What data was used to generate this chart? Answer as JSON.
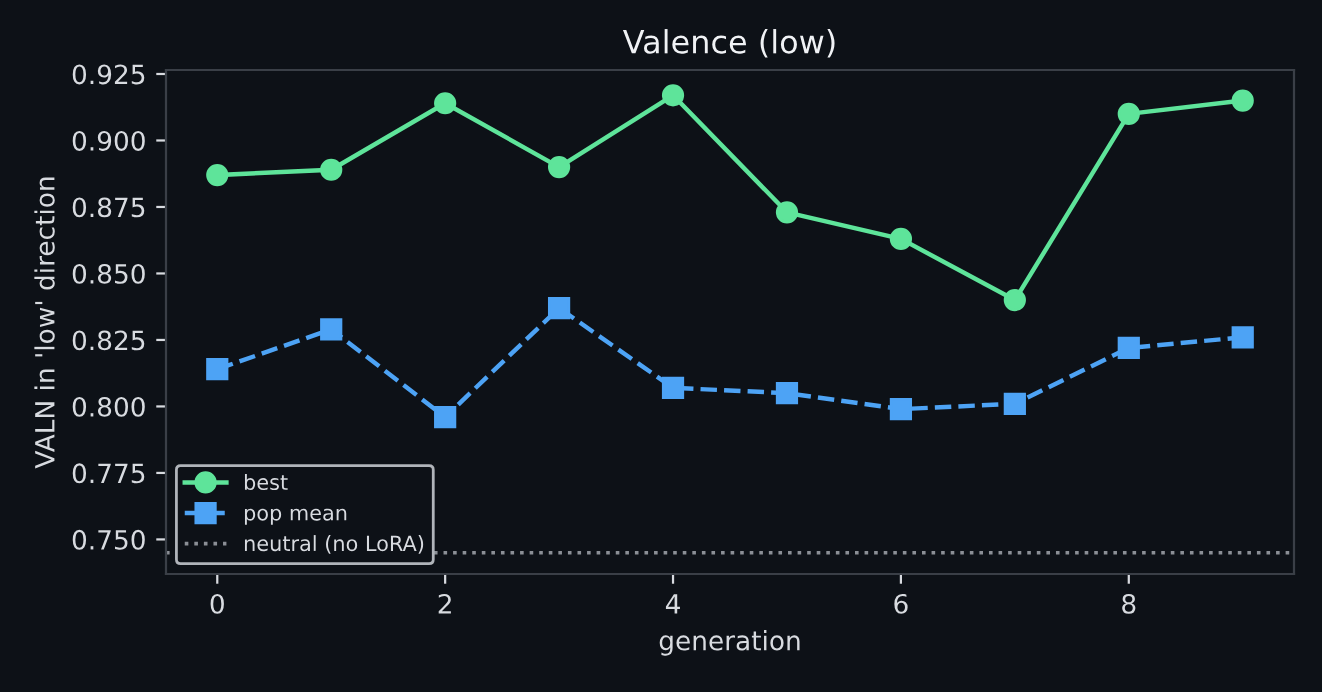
{
  "chart_data": {
    "type": "line",
    "title": "Valence (low)",
    "xlabel": "generation",
    "ylabel": "VALN in 'low' direction",
    "x": [
      0,
      1,
      2,
      3,
      4,
      5,
      6,
      7,
      8,
      9
    ],
    "series": [
      {
        "name": "best",
        "color": "#5ee49a",
        "values": [
          0.887,
          0.889,
          0.914,
          0.89,
          0.917,
          0.873,
          0.863,
          0.84,
          0.91,
          0.915
        ],
        "marker": "circle",
        "line_style": "solid"
      },
      {
        "name": "pop mean",
        "color": "#4da3f5",
        "values": [
          0.814,
          0.829,
          0.796,
          0.837,
          0.807,
          0.805,
          0.799,
          0.801,
          0.822,
          0.826
        ],
        "marker": "square",
        "line_style": "dashed"
      }
    ],
    "ref_lines": [
      {
        "axis": "y",
        "value": 0.745,
        "label": "neutral (no LoRA)",
        "color": "#8b8f96",
        "line_style": "dotted"
      }
    ],
    "xlim": [
      -0.45,
      9.45
    ],
    "ylim": [
      0.737,
      0.9265
    ],
    "xticks": [
      0,
      2,
      4,
      6,
      8
    ],
    "yticks": [
      {
        "value": 0.75,
        "label": "0.750"
      },
      {
        "value": 0.775,
        "label": "0.775"
      },
      {
        "value": 0.8,
        "label": "0.800"
      },
      {
        "value": 0.825,
        "label": "0.825"
      },
      {
        "value": 0.85,
        "label": "0.850"
      },
      {
        "value": 0.875,
        "label": "0.875"
      },
      {
        "value": 0.9,
        "label": "0.900"
      },
      {
        "value": 0.925,
        "label": "0.925"
      }
    ],
    "grid": false,
    "legend": "bottom left"
  }
}
